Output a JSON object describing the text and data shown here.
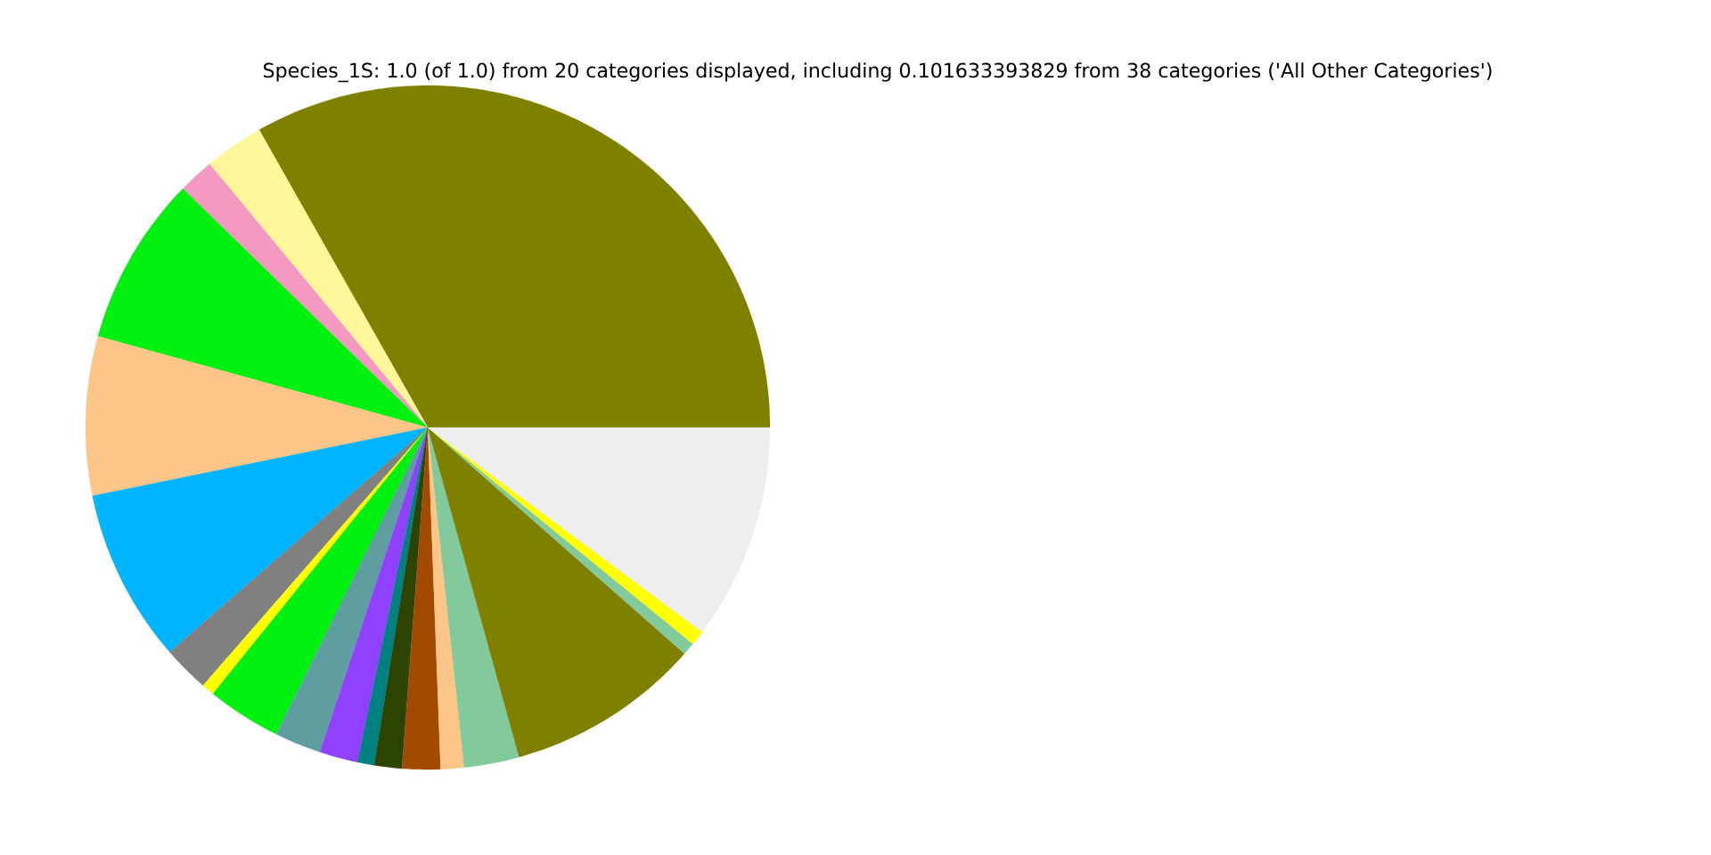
{
  "chart_data": {
    "type": "pie",
    "title": "Species_1S: 1.0 (of 1.0) from 20 categories displayed, including 0.101633393829 from 38 categories ('All Other Categories')",
    "categories": [
      null,
      null,
      null,
      null,
      null,
      null,
      null,
      null,
      null,
      null,
      null,
      null,
      null,
      null,
      null,
      null,
      null,
      null,
      null,
      null
    ],
    "values": [
      33.2,
      2.8,
      1.7,
      8.0,
      7.5,
      8.2,
      2.2,
      0.6,
      3.5,
      2.2,
      1.8,
      0.8,
      1.3,
      1.8,
      1.1,
      2.6,
      9.2,
      0.6,
      0.7,
      10.2
    ],
    "colors": [
      "#808000",
      "#fff799",
      "#f49ac1",
      "#00f00f",
      "#fdc689",
      "#00b4ff",
      "#808080",
      "#ffff00",
      "#00f00f",
      "#5f9ea0",
      "#9041ff",
      "#008080",
      "#2c4400",
      "#a14a00",
      "#fdc689",
      "#82ca9c",
      "#808000",
      "#82ca9c",
      "#ffff00",
      "#eeeeee"
    ]
  }
}
